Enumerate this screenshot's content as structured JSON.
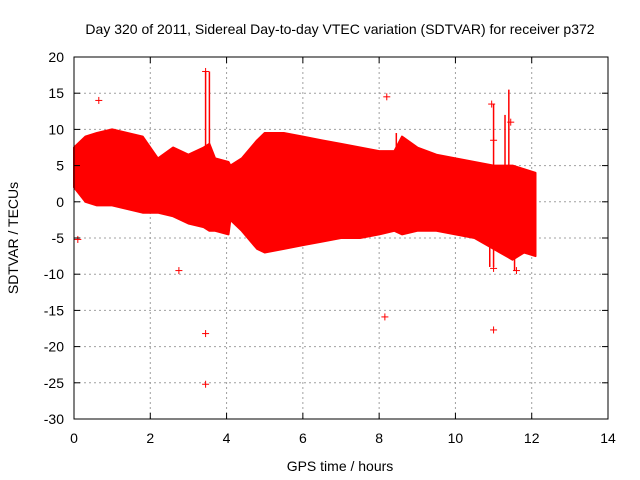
{
  "chart_data": {
    "type": "scatter",
    "title": "Day 320 of 2011, Sidereal Day-to-day VTEC variation (SDTVAR) for receiver p372",
    "xlabel": "GPS time / hours",
    "ylabel": "SDTVAR / TECUs",
    "xlim": [
      0,
      14
    ],
    "ylim": [
      -30,
      20
    ],
    "xticks": [
      0,
      2,
      4,
      6,
      8,
      10,
      12,
      14
    ],
    "yticks": [
      -30,
      -25,
      -20,
      -15,
      -10,
      -5,
      0,
      5,
      10,
      15,
      20
    ],
    "grid": true,
    "series": [
      {
        "name": "SDTVAR",
        "color": "#ff0000",
        "marker": "+",
        "dense_band": {
          "x": [
            0.0,
            0.3,
            0.6,
            1.0,
            1.4,
            1.8,
            2.2,
            2.6,
            3.0,
            3.4,
            3.55,
            3.7,
            4.05,
            4.1,
            4.4,
            4.8,
            5.0,
            5.5,
            6.0,
            6.5,
            7.0,
            7.5,
            8.0,
            8.4,
            8.6,
            9.0,
            9.5,
            10.0,
            10.5,
            11.0,
            11.5,
            11.8,
            12.1
          ],
          "upper": [
            7.5,
            9.0,
            9.5,
            10.0,
            9.5,
            9.0,
            6.0,
            7.5,
            6.5,
            7.5,
            8.0,
            6.0,
            5.5,
            5.0,
            6.0,
            8.5,
            9.5,
            9.5,
            9.0,
            8.5,
            8.0,
            7.5,
            7.0,
            7.0,
            9.0,
            7.5,
            6.5,
            6.0,
            5.5,
            5.0,
            5.0,
            4.5,
            4.0
          ],
          "lower": [
            2.0,
            0.0,
            -0.5,
            -0.5,
            -1.0,
            -1.5,
            -1.5,
            -2.0,
            -3.0,
            -3.5,
            -4.0,
            -4.0,
            -4.5,
            -2.5,
            -4.0,
            -6.5,
            -7.0,
            -6.5,
            -6.0,
            -5.5,
            -5.0,
            -5.0,
            -4.5,
            -4.0,
            -4.5,
            -4.0,
            -4.0,
            -4.5,
            -5.0,
            -6.5,
            -8.0,
            -7.0,
            -7.5
          ]
        },
        "spikes": [
          {
            "x": 3.45,
            "y0": 3.0,
            "y1": 18.0
          },
          {
            "x": 3.55,
            "y0": -4.0,
            "y1": 18.0
          },
          {
            "x": 8.45,
            "y0": 5.0,
            "y1": 9.5
          },
          {
            "x": 10.9,
            "y0": -9.0,
            "y1": 5.0
          },
          {
            "x": 11.0,
            "y0": -9.0,
            "y1": 13.5
          },
          {
            "x": 11.3,
            "y0": -2.0,
            "y1": 12.0
          },
          {
            "x": 11.4,
            "y0": -7.0,
            "y1": 15.5
          },
          {
            "x": 11.55,
            "y0": -9.5,
            "y1": 5.0
          },
          {
            "x": 12.05,
            "y0": -7.5,
            "y1": 4.0
          }
        ],
        "outliers": [
          {
            "x": 0.1,
            "y": -5.2
          },
          {
            "x": 0.65,
            "y": 14.0
          },
          {
            "x": 2.75,
            "y": -9.5
          },
          {
            "x": 3.45,
            "y": 18.0
          },
          {
            "x": 3.45,
            "y": -18.2
          },
          {
            "x": 3.45,
            "y": -25.2
          },
          {
            "x": 8.15,
            "y": -15.9
          },
          {
            "x": 8.2,
            "y": 14.5
          },
          {
            "x": 10.95,
            "y": 13.5
          },
          {
            "x": 11.0,
            "y": -17.7
          },
          {
            "x": 11.0,
            "y": 8.5
          },
          {
            "x": 11.0,
            "y": -9.2
          },
          {
            "x": 11.45,
            "y": 11.0
          },
          {
            "x": 11.6,
            "y": -9.5
          }
        ]
      }
    ]
  }
}
